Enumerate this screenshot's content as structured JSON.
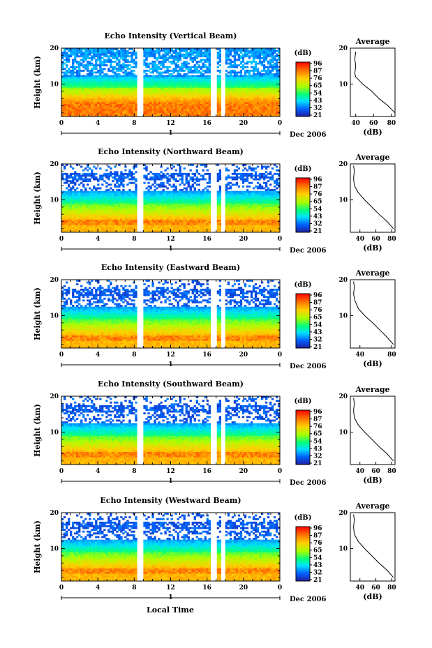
{
  "figure": {
    "x_axis_label": "Local Time",
    "x_ticks": [
      "0",
      "4",
      "8",
      "12",
      "16",
      "20",
      "0"
    ],
    "date_tick": "1",
    "date_label": "Dec 2006",
    "y_axis_label": "Height (km)",
    "y_ticks": [
      "20",
      "10"
    ],
    "colorbar_unit": "(dB)",
    "colorbar_ticks": [
      "96",
      "87",
      "76",
      "65",
      "54",
      "43",
      "32",
      "21"
    ],
    "colorbar_colors": [
      "#ff0000",
      "#ff6a00",
      "#ffd000",
      "#a8ff00",
      "#00ff60",
      "#00e0ff",
      "#0060ff",
      "#2020a0"
    ],
    "avg_title": "Average",
    "avg_xlabel": "(dB)"
  },
  "chart_data": [
    {
      "type": "heatmap",
      "title": "Echo Intensity (Vertical Beam)",
      "xlabel": "",
      "ylabel": "Height (km)",
      "xlim": [
        0,
        24
      ],
      "ylim": [
        1,
        20
      ],
      "colorbar": {
        "label": "(dB)",
        "range": [
          21,
          96
        ]
      },
      "data_gaps_hours": [
        [
          8.4,
          8.9
        ],
        [
          16.5,
          17.0
        ],
        [
          17.6,
          18.0
        ]
      ],
      "profile": {
        "title": "Average",
        "xlabel": "(dB)",
        "xlim": [
          34,
          84
        ],
        "xticks": [
          "40",
          "60",
          "80"
        ],
        "heights": [
          2,
          4,
          6,
          8,
          10,
          12,
          13,
          15,
          17,
          19
        ],
        "values": [
          84,
          76,
          66,
          58,
          48,
          40,
          39,
          40,
          39,
          40
        ]
      }
    },
    {
      "type": "heatmap",
      "title": "Echo Intensity (Northward Beam)",
      "xlabel": "",
      "ylabel": "Height (km)",
      "xlim": [
        0,
        24
      ],
      "ylim": [
        1,
        20
      ],
      "colorbar": {
        "label": "(dB)",
        "range": [
          21,
          96
        ]
      },
      "data_gaps_hours": [
        [
          8.4,
          8.9
        ],
        [
          16.5,
          17.0
        ],
        [
          17.6,
          18.0
        ]
      ],
      "profile": {
        "title": "Average",
        "xlabel": "(dB)",
        "xlim": [
          28,
          84
        ],
        "xticks": [
          "40",
          "60",
          "80"
        ],
        "heights": [
          2,
          4,
          6,
          8,
          10,
          12,
          14,
          16,
          18,
          19.5
        ],
        "values": [
          82,
          74,
          64,
          55,
          46,
          38,
          33,
          32,
          33,
          32
        ]
      }
    },
    {
      "type": "heatmap",
      "title": "Echo Intensity (Eastward Beam)",
      "xlabel": "",
      "ylabel": "Height (km)",
      "xlim": [
        0,
        24
      ],
      "ylim": [
        1,
        20
      ],
      "colorbar": {
        "label": "(dB)",
        "range": [
          21,
          96
        ]
      },
      "data_gaps_hours": [
        [
          8.4,
          8.9
        ],
        [
          16.5,
          17.0
        ],
        [
          17.6,
          18.0
        ]
      ],
      "profile": {
        "title": "Average",
        "xlabel": "(dB)",
        "xlim": [
          28,
          84
        ],
        "xticks": [
          "40",
          "80"
        ],
        "heights": [
          2,
          4,
          6,
          8,
          10,
          12,
          14,
          16,
          18,
          19.5
        ],
        "values": [
          82,
          74,
          65,
          56,
          46,
          38,
          34,
          32,
          33,
          32
        ]
      }
    },
    {
      "type": "heatmap",
      "title": "Echo Intensity (Southward Beam)",
      "xlabel": "",
      "ylabel": "Height (km)",
      "xlim": [
        0,
        24
      ],
      "ylim": [
        1,
        20
      ],
      "colorbar": {
        "label": "(dB)",
        "range": [
          21,
          96
        ]
      },
      "data_gaps_hours": [
        [
          8.4,
          8.9
        ],
        [
          16.5,
          17.0
        ],
        [
          17.6,
          18.0
        ]
      ],
      "profile": {
        "title": "Average",
        "xlabel": "(dB)",
        "xlim": [
          28,
          84
        ],
        "xticks": [
          "40",
          "60",
          "80"
        ],
        "heights": [
          2,
          4,
          6,
          8,
          10,
          12,
          14,
          16,
          18,
          19.5
        ],
        "values": [
          82,
          74,
          64,
          55,
          46,
          38,
          33,
          32,
          33,
          32
        ]
      }
    },
    {
      "type": "heatmap",
      "title": "Echo Intensity (Westward Beam)",
      "xlabel": "",
      "ylabel": "Height (km)",
      "xlim": [
        0,
        24
      ],
      "ylim": [
        1,
        20
      ],
      "colorbar": {
        "label": "(dB)",
        "range": [
          21,
          96
        ]
      },
      "data_gaps_hours": [
        [
          8.4,
          8.9
        ],
        [
          16.5,
          17.0
        ],
        [
          17.6,
          18.0
        ]
      ],
      "profile": {
        "title": "Average",
        "xlabel": "(dB)",
        "xlim": [
          28,
          84
        ],
        "xticks": [
          "40",
          "60",
          "80"
        ],
        "heights": [
          2,
          4,
          6,
          8,
          10,
          12,
          14,
          16,
          18,
          19.5
        ],
        "values": [
          82,
          74,
          64,
          55,
          46,
          38,
          33,
          32,
          33,
          32
        ]
      }
    }
  ]
}
